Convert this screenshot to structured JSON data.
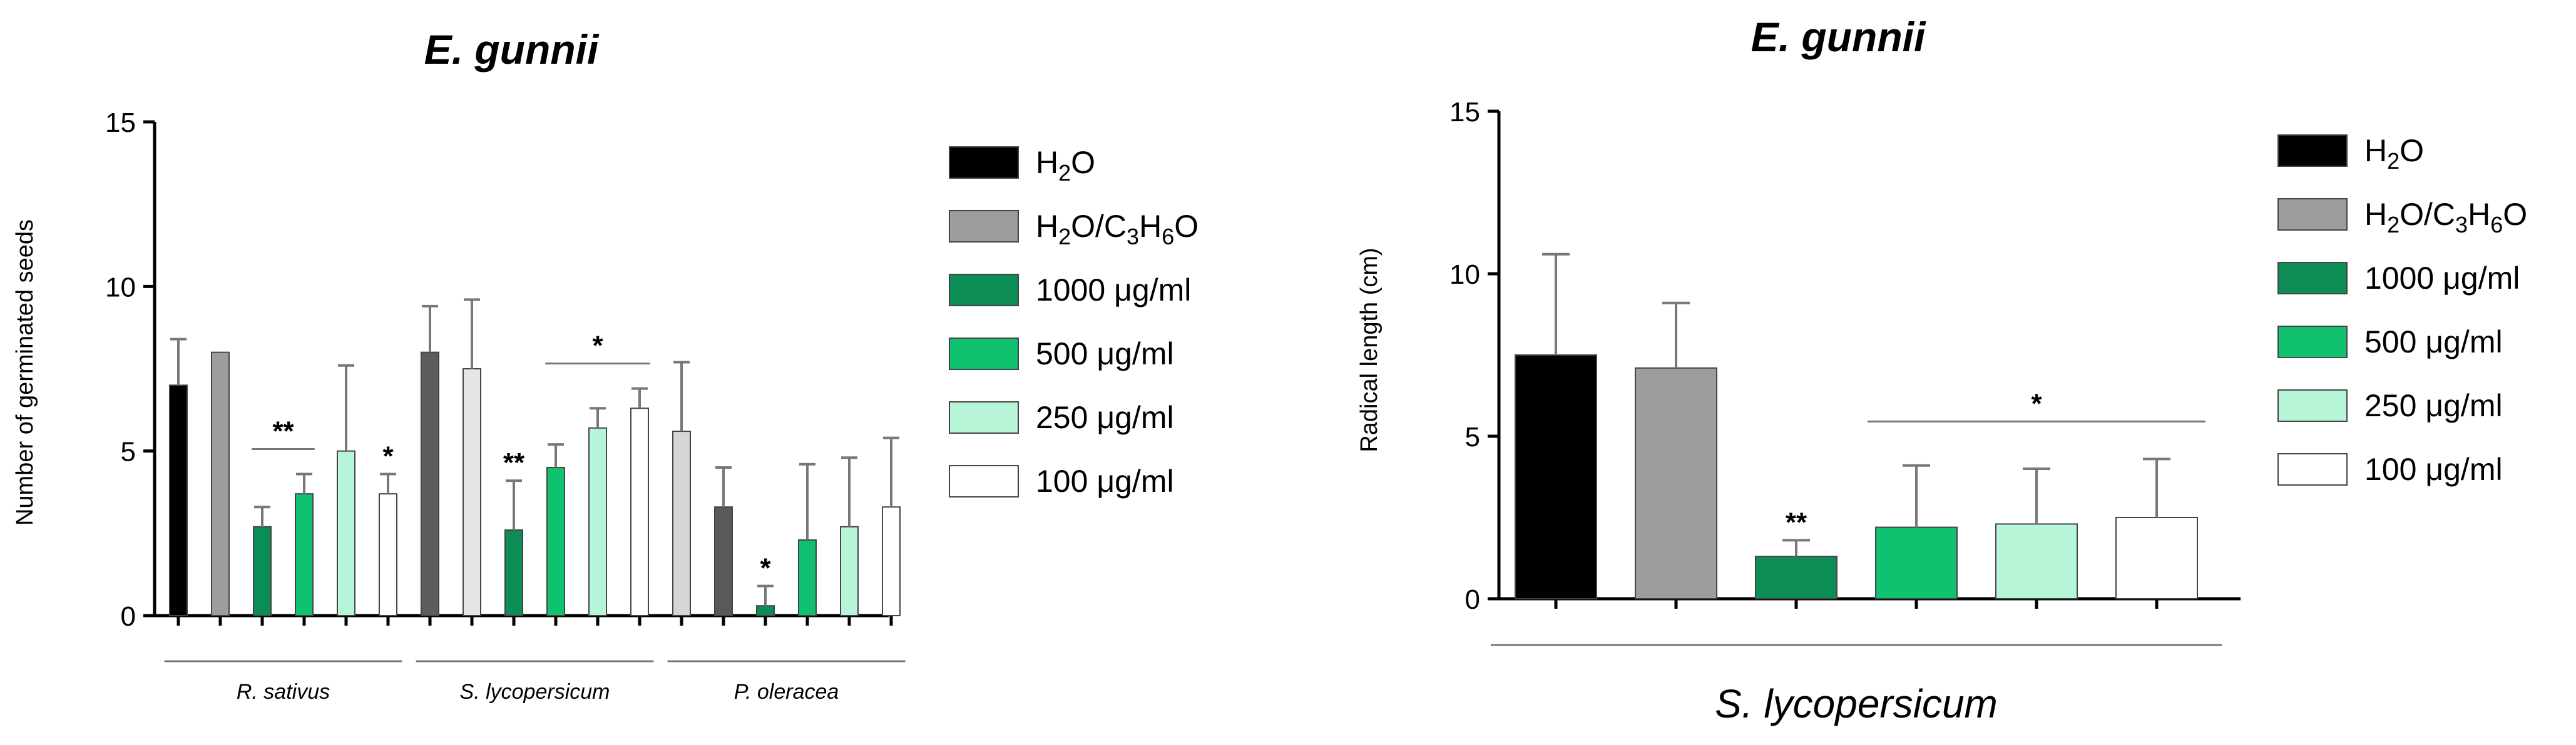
{
  "colors": {
    "h2o": "#000000",
    "h2o_acetone": "#9d9d9d",
    "c1000": "#0c8d55",
    "c500": "#10c270",
    "c250": "#b6f5d8",
    "c100": "#ffffff",
    "p_oleracea_h2o": "#595959",
    "p_oleracea_h2o_acetone": "#d6d6d6",
    "s_lyco_h2o": "#5d5d5d",
    "s_lyco_h2o_acetone": "#e6e6e6"
  },
  "legend": [
    {
      "key": "h2o",
      "text": "H",
      "sub1": "2",
      "text2": "O",
      "sub2": "",
      "text3": "",
      "sub3": "",
      "text4": ""
    },
    {
      "key": "h2o_acetone",
      "text": "H",
      "sub1": "2",
      "text2": "O/C",
      "sub2": "3",
      "text3": "H",
      "sub3": "6",
      "text4": "O"
    },
    {
      "key": "c1000",
      "text": "1000 μg/ml",
      "sub1": "",
      "text2": "",
      "sub2": "",
      "text3": "",
      "sub3": "",
      "text4": ""
    },
    {
      "key": "c500",
      "text": "500 μg/ml",
      "sub1": "",
      "text2": "",
      "sub2": "",
      "text3": "",
      "sub3": "",
      "text4": ""
    },
    {
      "key": "c250",
      "text": "250 μg/ml",
      "sub1": "",
      "text2": "",
      "sub2": "",
      "text3": "",
      "sub3": "",
      "text4": ""
    },
    {
      "key": "c100",
      "text": "100 μg/ml",
      "sub1": "",
      "text2": "",
      "sub2": "",
      "text3": "",
      "sub3": "",
      "text4": ""
    }
  ],
  "chart_data": [
    {
      "type": "bar",
      "title": "E. gunnii",
      "ylabel": "Number of germinated seeds",
      "ylim": [
        0,
        15
      ],
      "yticks": [
        0,
        5,
        10,
        15
      ],
      "groups": [
        {
          "label": "R. sativus",
          "bars": [
            {
              "key": "h2o",
              "value": 7.0,
              "err": 1.4
            },
            {
              "key": "h2o_acetone",
              "value": 8.0,
              "err": 0
            },
            {
              "key": "c1000",
              "value": 2.7,
              "err": 0.6
            },
            {
              "key": "c500",
              "value": 3.7,
              "err": 0.6
            },
            {
              "key": "c250",
              "value": 5.0,
              "err": 2.6
            },
            {
              "key": "c100",
              "value": 3.7,
              "err": 0.6
            }
          ],
          "annotations": [
            {
              "text": "**",
              "bars": [
                2,
                3
              ]
            },
            {
              "text": "*",
              "bars": [
                5
              ]
            }
          ]
        },
        {
          "label": "S. lycopersicum",
          "bars": [
            {
              "key": "s_lyco_h2o",
              "value": 8.0,
              "err": 1.4
            },
            {
              "key": "s_lyco_h2o_acetone",
              "value": 7.5,
              "err": 2.1
            },
            {
              "key": "c1000",
              "value": 2.6,
              "err": 1.5
            },
            {
              "key": "c500",
              "value": 4.5,
              "err": 0.7
            },
            {
              "key": "c250",
              "value": 5.7,
              "err": 0.6
            },
            {
              "key": "c100",
              "value": 6.3,
              "err": 0.6
            }
          ],
          "annotations": [
            {
              "text": "**",
              "bars": [
                2
              ]
            },
            {
              "text": "*",
              "bars": [
                3,
                5
              ]
            }
          ]
        },
        {
          "label": "P. oleracea",
          "bars": [
            {
              "key": "p_oleracea_h2o_acetone",
              "value": 5.6,
              "err": 2.1
            },
            {
              "key": "p_oleracea_h2o",
              "value": 3.3,
              "err": 1.2
            },
            {
              "key": "c1000",
              "value": 0.3,
              "err": 0.6
            },
            {
              "key": "c500",
              "value": 2.3,
              "err": 2.3
            },
            {
              "key": "c250",
              "value": 2.7,
              "err": 2.1
            },
            {
              "key": "c100",
              "value": 3.3,
              "err": 2.1
            }
          ],
          "annotations": [
            {
              "text": "*",
              "bars": [
                2
              ]
            }
          ]
        }
      ]
    },
    {
      "type": "bar",
      "title": "E. gunnii",
      "ylabel": "Radical length (cm)",
      "ylim": [
        0,
        15
      ],
      "yticks": [
        0,
        5,
        10,
        15
      ],
      "groups": [
        {
          "label": "S. lycopersicum",
          "bars": [
            {
              "key": "h2o",
              "value": 7.5,
              "err": 3.1
            },
            {
              "key": "h2o_acetone",
              "value": 7.1,
              "err": 2.0
            },
            {
              "key": "c1000",
              "value": 1.3,
              "err": 0.5
            },
            {
              "key": "c500",
              "value": 2.2,
              "err": 1.9
            },
            {
              "key": "c250",
              "value": 2.3,
              "err": 1.7
            },
            {
              "key": "c100",
              "value": 2.5,
              "err": 1.8
            }
          ],
          "annotations": [
            {
              "text": "**",
              "bars": [
                2
              ]
            },
            {
              "text": "*",
              "bars": [
                3,
                5
              ]
            }
          ]
        }
      ]
    }
  ]
}
